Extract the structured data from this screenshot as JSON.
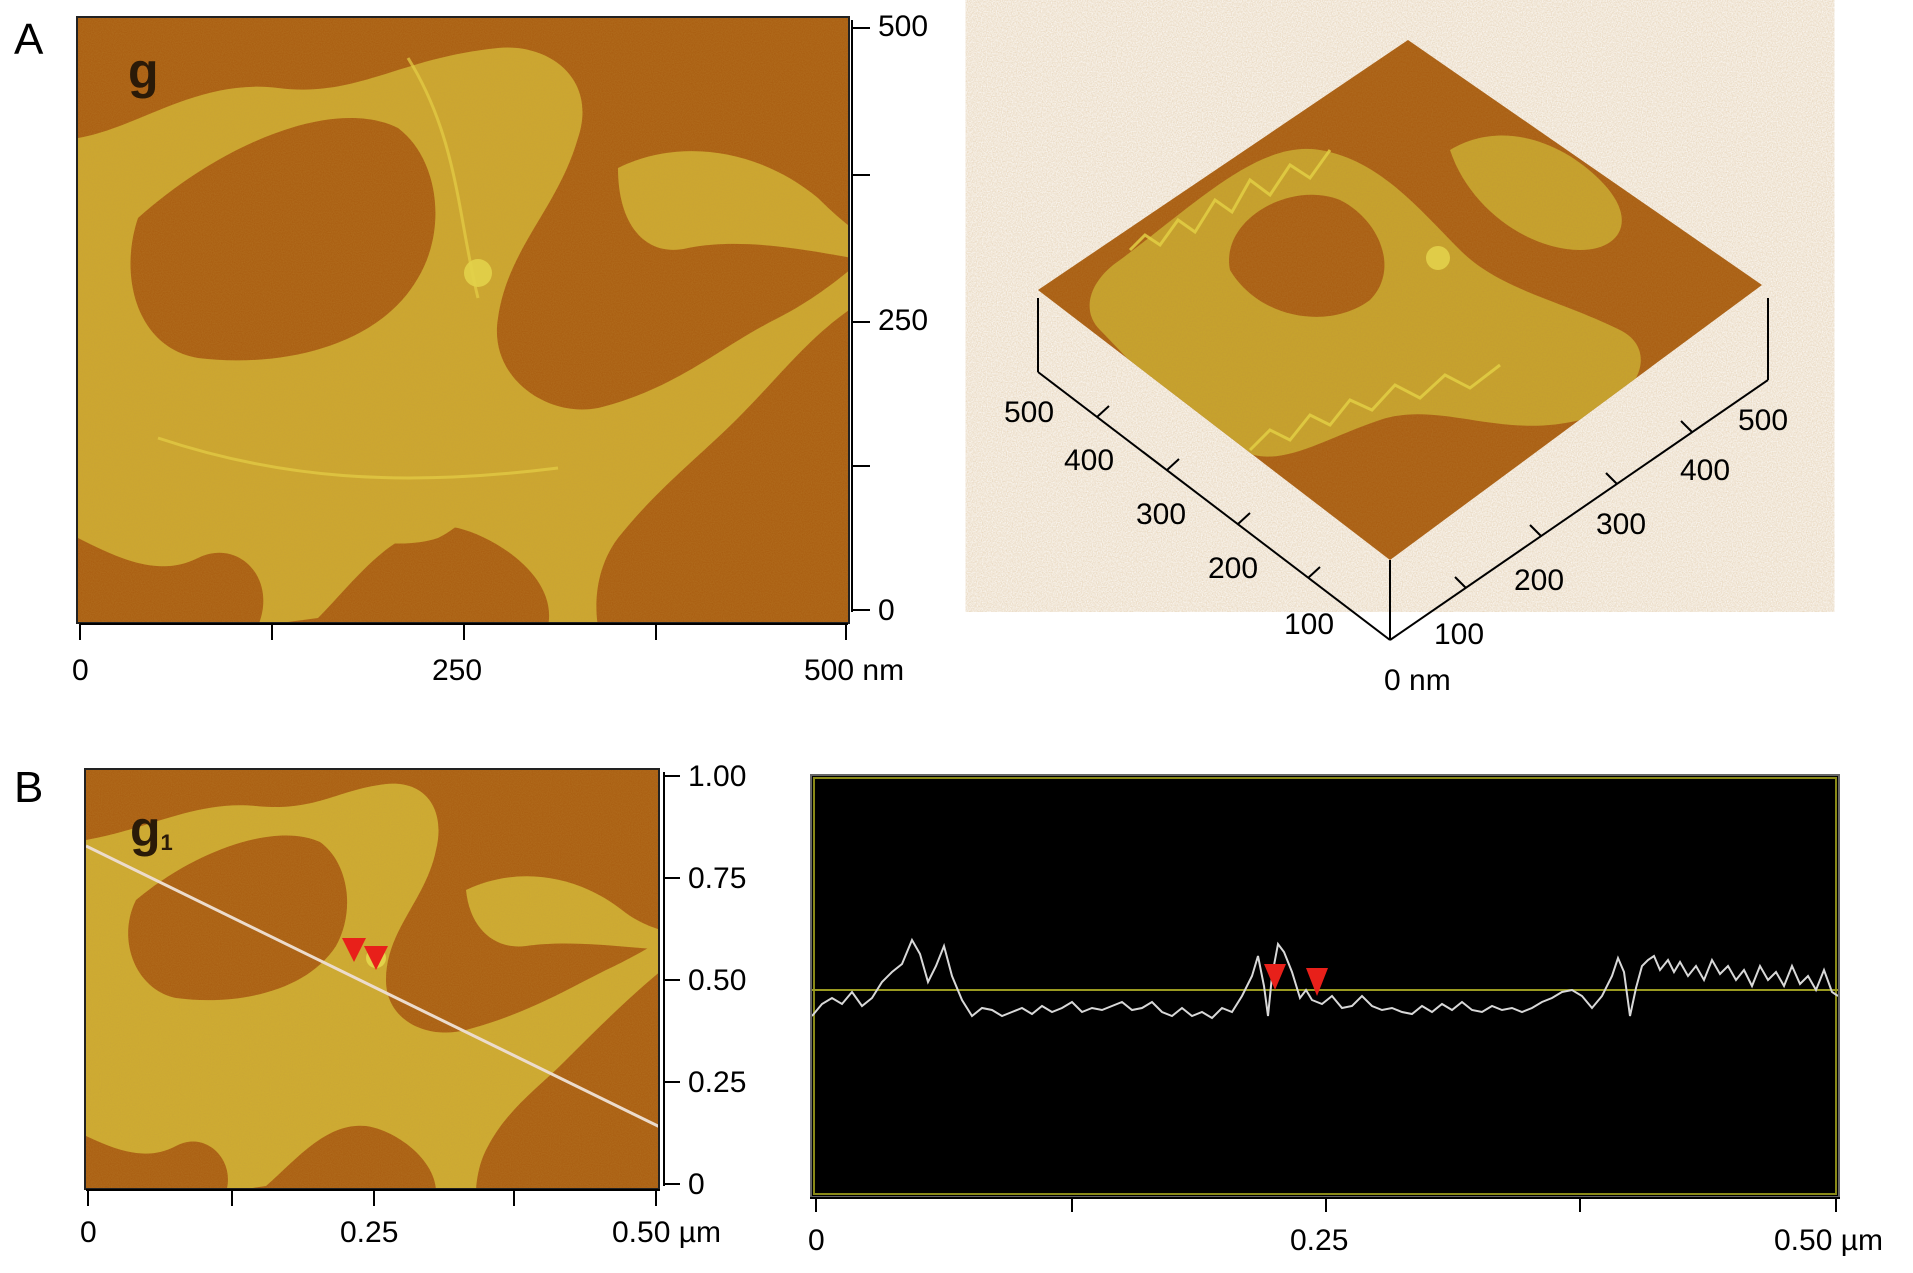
{
  "panels": {
    "A": {
      "letter": "A",
      "image_label": "g",
      "x_ticks": [
        "0",
        "250",
        "500 nm"
      ],
      "y_ticks": [
        "500",
        "250",
        "0"
      ],
      "surface3d": {
        "left_axis_ticks": [
          "500",
          "400",
          "300",
          "200",
          "100"
        ],
        "right_axis_ticks": [
          "500",
          "400",
          "300",
          "200",
          "100"
        ],
        "origin_label": "0 nm"
      }
    },
    "B": {
      "letter": "B",
      "image_label": "g",
      "image_label_sub": "1",
      "x_ticks": [
        "0",
        "0.25",
        "0.50 µm"
      ],
      "y_ticks": [
        "1.00",
        "0.75",
        "0.50",
        "0.25",
        "0"
      ],
      "profile_x_ticks": [
        "0",
        "0.25",
        "0.50 µm"
      ]
    }
  },
  "colors": {
    "afm_dark": "#a3560c",
    "afm_mid": "#c07a1a",
    "afm_light": "#d9c23a",
    "profile_bg": "#000000",
    "profile_trace": "#d8d8d8",
    "profile_baseline": "#9a9a20",
    "marker": "#e8201a",
    "scan_line": "#e8d8c8"
  }
}
